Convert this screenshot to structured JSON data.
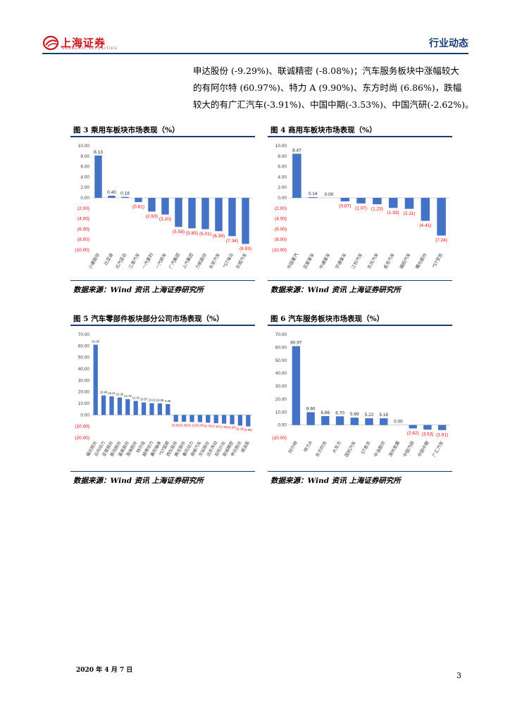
{
  "header": {
    "logo_text": "上海证券",
    "logo_sub": "SHANGHAI SECURITIES",
    "section_label": "行业动态"
  },
  "paragraph": {
    "lines": [
      "申达股份 (-9.29%)、联诚精密 (-8.08%)；汽车服务板块中涨幅较大",
      "的有阿尔特 (60.97%)、特力 A (9.90%)、东方时尚 (6.86%)，跌幅",
      "较大的有广汇汽车(-3.91%)、中国中期(-3.53%)、中国汽研(-2.62%)。"
    ]
  },
  "figures": [
    {
      "title": "图 3  乘用车板块市场表现（%）",
      "source": "数据来源：Wind 资讯  上海证券研究所"
    },
    {
      "title": "图 4  商用车板块市场表现（%）",
      "source": "数据来源：Wind 资讯  上海证券研究所"
    },
    {
      "title": "图 5  汽车零部件板块部分公司市场表现（%）",
      "source": "数据来源：Wind 资讯  上海证券研究所"
    },
    {
      "title": "图 6  汽车服务板块市场表现（%）",
      "source": "数据来源：Wind 资讯  上海证券研究所"
    }
  ],
  "colors": {
    "bar": "#4472c4",
    "neg_label": "#ff0000",
    "accent": "#1a3c78",
    "logo": "#c8161d"
  },
  "chart_data": [
    {
      "type": "bar",
      "title": "图 3  乘用车板块市场表现（%）",
      "categories": [
        "小康股份",
        "比亚迪",
        "北汽蓝谷",
        "江淮汽车",
        "一汽夏利",
        "一汽轿车",
        "广汽集团",
        "上汽集团",
        "力帆股份",
        "长安汽车",
        "*ST海马",
        "长城汽车"
      ],
      "values": [
        8.13,
        0.4,
        0.18,
        -0.81,
        -2.63,
        -3.2,
        -5.58,
        -5.85,
        -6.01,
        -6.39,
        -7.34,
        -8.83
      ],
      "labels": [
        "8.13",
        "0.40",
        "0.18",
        "(0.81)",
        "(2.63)",
        "(3.20)",
        "(5.58)",
        "(5.85)",
        "(6.01)",
        "(6.39)",
        "(7.34)",
        "(8.83)"
      ],
      "yticks": [
        "10.00",
        "8.00",
        "6.00",
        "4.00",
        "2.00",
        "0.00",
        "(2.00)",
        "(4.00)",
        "(6.00)",
        "(8.00)",
        "(10.00)"
      ],
      "ylim": [
        -10,
        10
      ]
    },
    {
      "type": "bar",
      "title": "图 4  商用车板块市场表现（%）",
      "categories": [
        "中国重汽",
        "亚星客车",
        "中通客车",
        "宇通客车",
        "江铃汽车",
        "东风汽车",
        "金龙汽车",
        "福田汽车",
        "曙光股份",
        "*ST安凯"
      ],
      "values": [
        8.47,
        0.14,
        0.0,
        -0.67,
        -1.07,
        -1.23,
        -1.93,
        -2.11,
        -4.41,
        -7.24
      ],
      "labels": [
        "8.47",
        "0.14",
        "0.00",
        "(0.67)",
        "(1.07)",
        "(1.23)",
        "(1.93)",
        "(2.11)",
        "(4.41)",
        "(7.24)"
      ],
      "yticks": [
        "10.00",
        "8.00",
        "6.00",
        "4.00",
        "2.00",
        "0.00",
        "(2.00)",
        "(4.00)",
        "(6.00)",
        "(8.00)",
        "(10.00)"
      ],
      "ylim": [
        -10,
        10
      ]
    },
    {
      "type": "bar",
      "title": "图 5  汽车零部件板块部分公司市场表现（%）",
      "categories": [
        "福达股份",
        "云内动力",
        "亚普股份",
        "鹏翎股份",
        "富奥股份",
        "渤海股份",
        "特尔佳",
        "越博动力",
        "襄阳轴承",
        "*ST猛狮",
        "西仪股份",
        "腾龙股份",
        "春风动力",
        "泉峰汽车",
        "文灿股份",
        "远东传动",
        "岳阳兴长",
        "联诚精密",
        "申达股份",
        "湘油泵"
      ],
      "values": [
        61.08,
        16.96,
        16.24,
        15.2,
        13.79,
        12.16,
        10.87,
        10.22,
        10.09,
        9.45,
        -5.98,
        -5.98,
        -6.12,
        -6.25,
        -6.7,
        -7.11,
        -7.56,
        -8.08,
        -9.29,
        -9.96
      ],
      "labels": [
        "61.08",
        "16.96",
        "16.24",
        "15.20",
        "13.79",
        "12.16",
        "10.87",
        "10.22",
        "10.09",
        "9.45",
        "(5.98)",
        "(5.98)",
        "(6.12)",
        "(6.25)",
        "(6.70)",
        "(7.11)",
        "(7.56)",
        "(8.08)",
        "(9.29)",
        "(9.96)"
      ],
      "yticks": [
        "70.00",
        "60.00",
        "50.00",
        "40.00",
        "30.00",
        "20.00",
        "10.00",
        "0.00",
        "(10.00)",
        "(20.00)"
      ],
      "ylim": [
        -20,
        70
      ]
    },
    {
      "type": "bar",
      "title": "图 6  汽车服务板块市场表现（%）",
      "categories": [
        "阿尔特",
        "特力A",
        "东方时尚",
        "大东方",
        "国机汽车",
        "ST舍夫",
        "中油股份",
        "漳州发展",
        "中国汽研",
        "中国中期",
        "广汇汽车"
      ],
      "values": [
        60.97,
        9.9,
        6.86,
        6.7,
        5.69,
        5.22,
        5.18,
        0.0,
        -2.62,
        -3.53,
        -3.91
      ],
      "labels": [
        "60.97",
        "9.90",
        "6.86",
        "6.70",
        "5.69",
        "5.22",
        "5.18",
        "0.00",
        "(2.62)",
        "(3.53)",
        "(3.91)"
      ],
      "yticks": [
        "70.00",
        "60.00",
        "50.00",
        "40.00",
        "30.00",
        "20.00",
        "10.00",
        "0.00",
        "(10.00)"
      ],
      "ylim": [
        -10,
        70
      ]
    }
  ],
  "footer": {
    "date": "2020 年 4 月 7 日",
    "page": "3"
  }
}
